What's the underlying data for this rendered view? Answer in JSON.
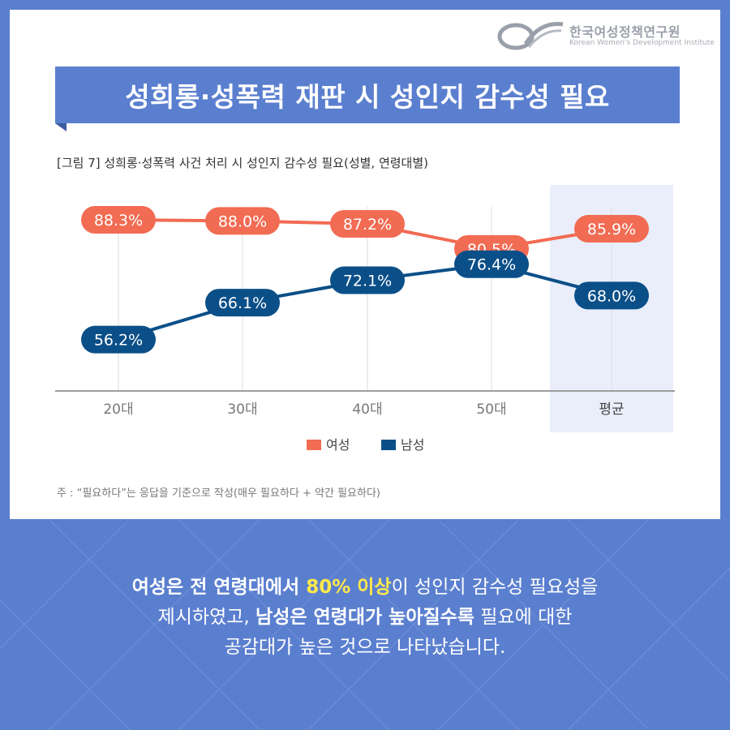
{
  "logo": {
    "name_kr": "한국여성정책연구원",
    "name_en": "Korean Women's Development Institute"
  },
  "title": "성희롱·성폭력 재판 시 성인지 감수성 필요",
  "figure_caption": "[그림 7] 성희롱·성폭력 사건 처리 시 성인지 감수성 필요(성별, 연령대별)",
  "note": "주 : “필요하다”는 응답을 기준으로 작성(매우 필요하다 + 약간 필요하다)",
  "summary": {
    "line1_a": "여성은 전 연령대에서 ",
    "line1_b": "80% 이상",
    "line1_c": "이 성인지 감수성 필요성을",
    "line2_a": "제시하였고, ",
    "line2_b": "남성은 연령대가 높아질수록",
    "line2_c": " 필요에 대한",
    "line3": "공감대가 높은 것으로 나타났습니다."
  },
  "colors": {
    "female": "#f26b53",
    "male": "#0b4f88",
    "title_bg": "#5b7fcf",
    "highlight": "#ffe94a",
    "avg_band": "#e9eefa"
  },
  "chart_data": {
    "type": "line",
    "categories": [
      "20대",
      "30대",
      "40대",
      "50대",
      "평균"
    ],
    "highlight_category": "평균",
    "series": [
      {
        "name": "여성",
        "values": [
          88.3,
          88.0,
          87.2,
          80.5,
          85.9
        ],
        "labels": [
          "88.3%",
          "88.0%",
          "87.2%",
          "80.5%",
          "85.9%"
        ]
      },
      {
        "name": "남성",
        "values": [
          56.2,
          66.1,
          72.1,
          76.4,
          68.0
        ],
        "labels": [
          "56.2%",
          "66.1%",
          "72.1%",
          "76.4%",
          "68.0%"
        ]
      }
    ],
    "legend_position": "bottom-center",
    "grid": "vertical"
  }
}
